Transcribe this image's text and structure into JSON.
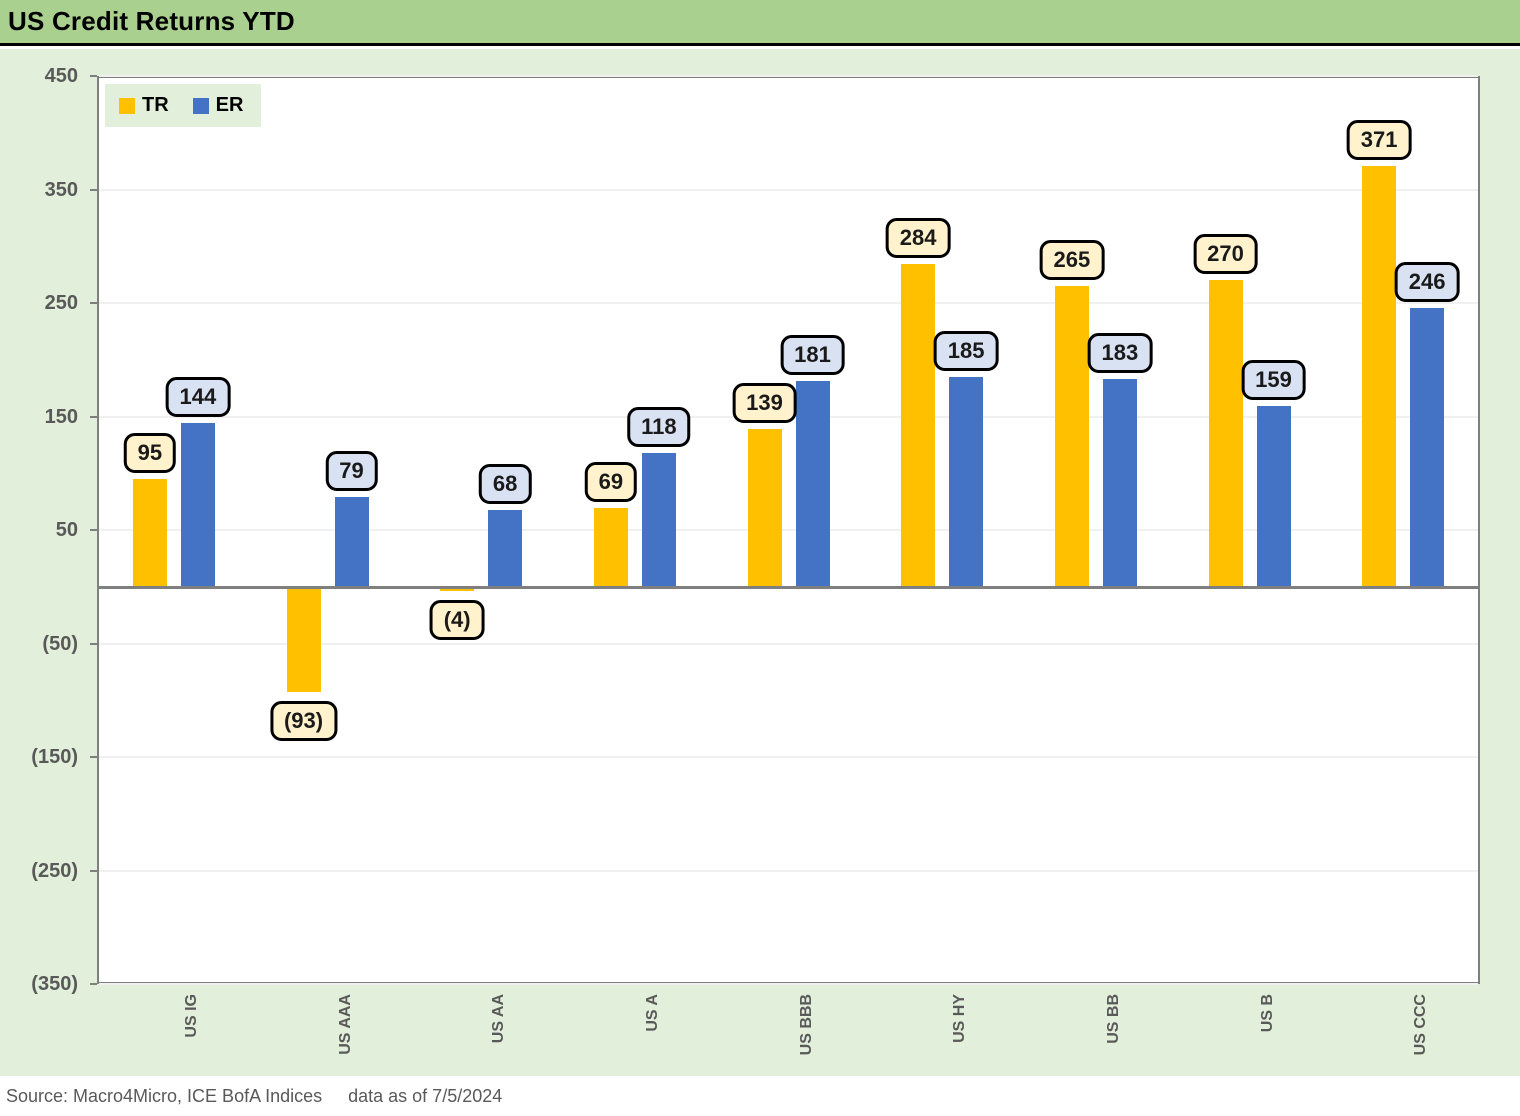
{
  "header": {
    "title": "US Credit Returns YTD"
  },
  "colors": {
    "header_bg": "#A9D08E",
    "page_bg": "#E2EFDA",
    "plot_border": "#7F7F7F",
    "gridline": "#F0F0F0",
    "axis_text": "#595959",
    "tr": "#FFC000",
    "er": "#4472C4",
    "tr_label_bg": "#FFF2CC",
    "er_label_bg": "#D9E2F2"
  },
  "chart_data": {
    "type": "bar",
    "title": "US Credit Returns YTD",
    "categories": [
      "US IG",
      "US AAA",
      "US AA",
      "US A",
      "US BBB",
      "US HY",
      "US BB",
      "US B",
      "US CCC"
    ],
    "series": [
      {
        "name": "TR",
        "color": "#FFC000",
        "label_fill": "#FFF2CC",
        "values": [
          95,
          -93,
          -4,
          69,
          139,
          284,
          265,
          270,
          371
        ],
        "data_labels": [
          "95",
          "(93)",
          "(4)",
          "69",
          "139",
          "284",
          "265",
          "270",
          "371"
        ]
      },
      {
        "name": "ER",
        "color": "#4472C4",
        "label_fill": "#D9E2F2",
        "values": [
          144,
          79,
          68,
          118,
          181,
          185,
          183,
          159,
          246
        ],
        "data_labels": [
          "144",
          "79",
          "68",
          "118",
          "181",
          "185",
          "183",
          "159",
          "246"
        ]
      }
    ],
    "y_ticks": [
      450,
      350,
      250,
      150,
      50,
      -50,
      -150,
      -250,
      -350
    ],
    "y_tick_labels": [
      "450",
      "350",
      "250",
      "150",
      "50",
      "(50)",
      "(150)",
      "(250)",
      "(350)"
    ],
    "ylim": [
      -350,
      450
    ],
    "xlabel": "",
    "ylabel": "",
    "grid": true,
    "legend_position": "top-left"
  },
  "footer": {
    "source": "Source: Macro4Micro, ICE BofA Indices",
    "as_of": "data as of 7/5/2024"
  }
}
